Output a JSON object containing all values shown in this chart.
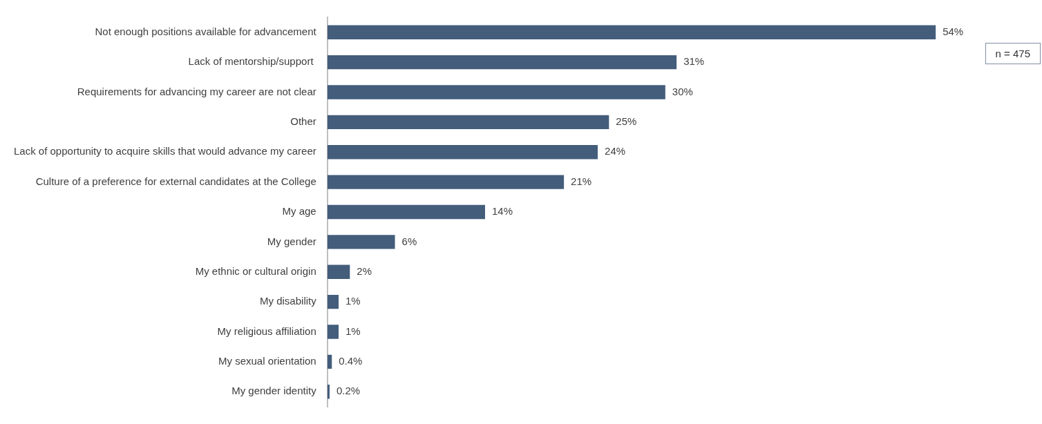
{
  "chart_data": {
    "type": "bar",
    "orientation": "horizontal",
    "categories": [
      "Not enough positions available for advancement",
      "Lack of mentorship/support ",
      "Requirements for advancing my career are not clear",
      "Other",
      "Lack of opportunity to acquire skills that would advance my career",
      "Culture of a preference for external candidates at the College",
      "My age",
      "My gender",
      "My ethnic or cultural origin",
      "My disability",
      "My religious affiliation",
      "My sexual orientation",
      "My gender identity"
    ],
    "values": [
      54,
      31,
      30,
      25,
      24,
      21,
      14,
      6,
      2,
      1,
      1,
      0.4,
      0.2
    ],
    "value_labels": [
      "54%",
      "31%",
      "30%",
      "25%",
      "24%",
      "21%",
      "14%",
      "6%",
      "2%",
      "1%",
      "1%",
      "0.4%",
      "0.2%"
    ],
    "color": "#435d7b",
    "annotations": [
      "n = 475"
    ],
    "legend": false
  }
}
